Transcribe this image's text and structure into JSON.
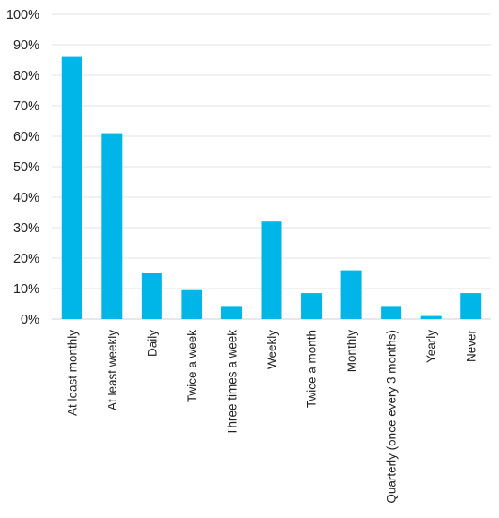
{
  "chart_data": {
    "type": "bar",
    "title": "",
    "xlabel": "",
    "ylabel": "",
    "ylim": [
      0,
      100
    ],
    "y_ticks": [
      0,
      10,
      20,
      30,
      40,
      50,
      60,
      70,
      80,
      90,
      100
    ],
    "y_tick_format": "percent",
    "grid": "horizontal",
    "bar_color": "#00b5e8",
    "categories": [
      "At least monthly",
      "At least weekly",
      "Daily",
      "Twice a week",
      "Three times a week",
      "Weekly",
      "Twice a month",
      "Monthly",
      "Quarterly (once every 3 months)",
      "Yearly",
      "Never"
    ],
    "values": [
      86,
      61,
      15,
      9.5,
      4,
      32,
      8.5,
      16,
      4,
      1,
      8.5
    ]
  }
}
